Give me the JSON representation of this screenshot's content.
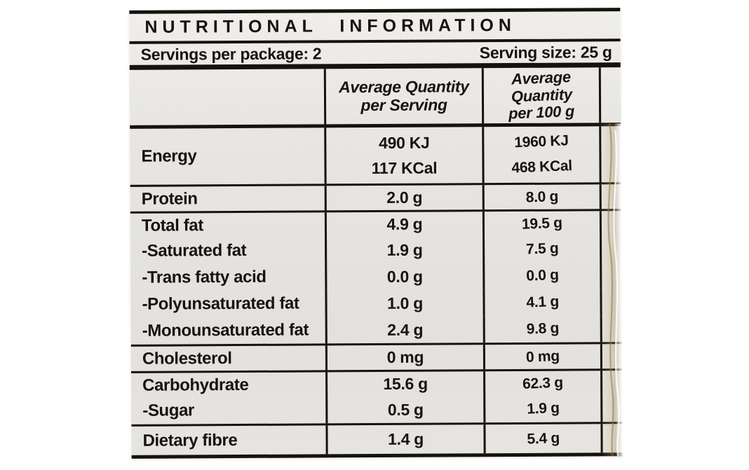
{
  "label": {
    "title": "NUTRITIONAL INFORMATION",
    "servings_per_package": "Servings per package: 2",
    "serving_size": "Serving size: 25 g",
    "columns": {
      "serving": {
        "line1": "Average Quantity",
        "line2": "per Serving"
      },
      "per_100g": {
        "line1": "Average Quantity",
        "line2": "per 100 g"
      }
    },
    "rows": [
      {
        "label": "Energy",
        "per_serving": [
          "490 KJ",
          "117 KCal"
        ],
        "per_100g": [
          "1960 KJ",
          "468 KCal"
        ],
        "divider_above": false
      },
      {
        "label": "Protein",
        "per_serving": "2.0 g",
        "per_100g": "8.0 g",
        "divider_above": true
      },
      {
        "label": "Total fat",
        "per_serving": "4.9 g",
        "per_100g": "19.5 g",
        "divider_above": true
      },
      {
        "label": "-Saturated fat",
        "per_serving": "1.9 g",
        "per_100g": "7.5 g",
        "divider_above": false
      },
      {
        "label": "-Trans fatty acid",
        "per_serving": "0.0 g",
        "per_100g": "0.0 g",
        "divider_above": false
      },
      {
        "label": "-Polyunsaturated fat",
        "per_serving": "1.0 g",
        "per_100g": "4.1 g",
        "divider_above": false
      },
      {
        "label": "-Monounsaturated fat",
        "per_serving": "2.4 g",
        "per_100g": "9.8 g",
        "divider_above": false
      },
      {
        "label": "Cholesterol",
        "per_serving": "0 mg",
        "per_100g": "0 mg",
        "divider_above": true
      },
      {
        "label": "Carbohydrate",
        "per_serving": "15.6 g",
        "per_100g": "62.3 g",
        "divider_above": true
      },
      {
        "label": "-Sugar",
        "per_serving": "0.5 g",
        "per_100g": "1.9 g",
        "divider_above": false
      },
      {
        "label": "Dietary fibre",
        "per_serving": "1.4 g",
        "per_100g": "5.4 g",
        "divider_above": true
      }
    ],
    "colors": {
      "label_background": "#e6e4e0",
      "ink": "#17130f",
      "photo_background": "#ffffff",
      "crinkle_highlight": "#c4ad76"
    }
  }
}
